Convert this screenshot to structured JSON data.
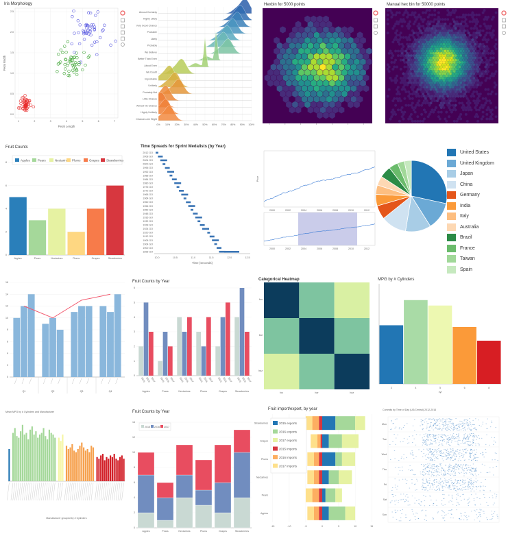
{
  "iris": {
    "title": "Iris Morphology",
    "xlabel": "Petal Length",
    "ylabel": "Petal Width",
    "xticks": [
      "1",
      "2",
      "3",
      "4",
      "5",
      "6",
      "7"
    ],
    "yticks": [
      "0.0",
      "0.5",
      "1.0",
      "1.5",
      "2.0",
      "2.5"
    ],
    "colors": [
      "#e82c2c",
      "#3fa535",
      "#5a5ae0"
    ]
  },
  "ridge": {
    "labels": [
      "Almost Certainly",
      "Highly Likely",
      "Very Good Chance",
      "Probable",
      "Likely",
      "Probably",
      "We Believe",
      "Better Than Even",
      "About Even",
      "We Doubt",
      "Improbable",
      "Unlikely",
      "Probably Not",
      "Little Chance",
      "Almost No Chance",
      "Highly Unlikely",
      "Chances Are Slight"
    ],
    "xticks": [
      "0%",
      "10%",
      "20%",
      "30%",
      "40%",
      "50%",
      "60%",
      "70%",
      "80%",
      "90%",
      "100%"
    ],
    "modes": [
      0.93,
      0.88,
      0.85,
      0.8,
      0.74,
      0.7,
      0.75,
      0.62,
      0.5,
      0.25,
      0.12,
      0.18,
      0.22,
      0.08,
      0.03,
      0.08,
      0.12
    ]
  },
  "hex": {
    "title": "Hexbin for 5000 points"
  },
  "hist2d": {
    "title": "Manual hex bin for 50000 points"
  },
  "fruit_counts": {
    "chart_data": {
      "type": "bar",
      "title": "Fruit Counts",
      "categories": [
        "Apples",
        "Pears",
        "Nectarines",
        "Plums",
        "Grapes",
        "Strawberries"
      ],
      "values": [
        5,
        3,
        4,
        2,
        4,
        6
      ],
      "colors": [
        "#2a7fba",
        "#a5d89a",
        "#e6f2a2",
        "#fed782",
        "#f77b4a",
        "#d7373f"
      ],
      "ylim": [
        0,
        9
      ],
      "yticks": [
        "0",
        "2",
        "4",
        "6",
        "8"
      ]
    }
  },
  "sprint": {
    "chart_data": {
      "type": "bar",
      "title": "Time Spreads for Sprint Medalists (by Year)",
      "xlabel": "Time (seconds)",
      "xticks": [
        "10.0",
        "10.5",
        "11.0",
        "11.5",
        "12.0",
        "12.5"
      ],
      "years": [
        "2012 GO",
        "2008 GO",
        "2004 GO",
        "2000 GO",
        "1996 GO",
        "1992 GO",
        "1988 GO",
        "1984 GO",
        "1980 GO",
        "1976 GO",
        "1972 GO",
        "1968 GO",
        "1964 GO",
        "1960 GO",
        "1956 GO",
        "1952 GO",
        "1948 GO",
        "1936 GO",
        "1932 GO",
        "1928 GO",
        "1924 GO",
        "1920 GO",
        "1912 GO",
        "1908 GO",
        "1904 GO",
        "1900 GO",
        "1896 GO"
      ]
    }
  },
  "stock": {
    "ylabel": "Price",
    "xticks": [
      "2000",
      "2002",
      "2004",
      "2006",
      "2008",
      "2010",
      "2012"
    ]
  },
  "pie": {
    "chart_data": {
      "type": "pie",
      "legend_position": "right",
      "labels": [
        "United States",
        "United Kingdom",
        "Japan",
        "China",
        "Germany",
        "India",
        "Italy",
        "Australia",
        "Brazil",
        "France",
        "Taiwan",
        "Spain"
      ],
      "values": [
        27,
        12,
        11,
        11,
        6,
        5,
        4,
        4,
        5,
        4,
        3,
        3
      ],
      "colors": [
        "#2276b4",
        "#6ba9d5",
        "#a8cde6",
        "#cfe2f1",
        "#e4561a",
        "#fb9a39",
        "#fdbe80",
        "#fdd8b3",
        "#2c8b46",
        "#6abb6b",
        "#a1d899",
        "#c6e9bf"
      ]
    }
  },
  "grouped": {
    "title": "",
    "chart_data": {
      "type": "bar",
      "groups": [
        "Q1",
        "Q2",
        "Q3",
        "Q4"
      ],
      "values": [
        [
          10,
          12,
          14
        ],
        [
          9,
          10,
          8
        ],
        [
          11,
          12,
          12
        ],
        [
          12,
          11,
          14
        ]
      ],
      "line": [
        12,
        10,
        13,
        14
      ],
      "color": "#8ab7dc",
      "line_color": "#f25a6f",
      "ylim": [
        0,
        16
      ],
      "yticks": [
        "0",
        "2",
        "4",
        "6",
        "8",
        "10",
        "12",
        "14",
        "16"
      ]
    }
  },
  "fruit_year": {
    "chart_data": {
      "type": "bar",
      "title": "Fruit Counts by Year",
      "categories": [
        "Apples",
        "Pears",
        "Nectarines",
        "Plums",
        "Grapes",
        "Strawberries"
      ],
      "series": [
        {
          "name": "2015",
          "values": [
            2,
            1,
            4,
            3,
            2,
            4
          ]
        },
        {
          "name": "2016",
          "values": [
            5,
            3,
            3,
            2,
            4,
            6
          ]
        },
        {
          "name": "2017",
          "values": [
            3,
            2,
            4,
            4,
            5,
            3
          ]
        }
      ],
      "colors": [
        "#c9d9d3",
        "#718dbf",
        "#e84d60"
      ],
      "ylim": [
        0,
        6
      ],
      "yticks": [
        "0",
        "1",
        "2",
        "3",
        "4",
        "5",
        "6"
      ]
    }
  },
  "heatmap": {
    "chart_data": {
      "type": "heatmap",
      "title": "Categorical Heatmap",
      "x": [
        "foo",
        "bar",
        "baz"
      ],
      "y": [
        "foo",
        "bar",
        "baz"
      ],
      "colors": [
        [
          "#0c3c5c",
          "#7ec4a0",
          "#d9f0a3"
        ],
        [
          "#7ec4a0",
          "#0c3c5c",
          "#7ec4a0"
        ],
        [
          "#d9f0a3",
          "#7ec4a0",
          "#0c3c5c"
        ]
      ],
      "grid": false
    }
  },
  "mpg": {
    "chart_data": {
      "type": "bar",
      "title": "MPG by # Cylinders",
      "xlabel": "cyl",
      "categories": [
        "3",
        "4",
        "5",
        "6",
        "8"
      ],
      "values": [
        20.5,
        29.3,
        27.4,
        19.9,
        15.1
      ],
      "colors": [
        "#2276b4",
        "#a9dba6",
        "#edf8b1",
        "#fb9a39",
        "#d71e23"
      ],
      "ylim": [
        0,
        35
      ]
    }
  },
  "mpg_mfr": {
    "chart_data": {
      "type": "bar",
      "title": "Mean MPG by # Cylinders and Manufacturer",
      "xlabel": "Manufacturer grouped by # Cylinders",
      "ylim": [
        0,
        40
      ],
      "groups": [
        {
          "cyl": "3",
          "color": "#2276b4",
          "count": 1,
          "values": [
            20
          ]
        },
        {
          "cyl": "4",
          "color": "#a5d89a",
          "count": 23,
          "values": [
            30,
            33,
            28,
            27,
            31,
            35,
            29,
            30,
            26,
            32,
            34,
            29,
            31,
            27,
            29,
            30,
            33,
            28,
            26,
            32,
            30,
            29,
            27
          ]
        },
        {
          "cyl": "5",
          "color": "#f6f6a5",
          "count": 3,
          "values": [
            27,
            25,
            29
          ]
        },
        {
          "cyl": "6",
          "color": "#f6a14e",
          "count": 15,
          "values": [
            22,
            20,
            21,
            23,
            19,
            18,
            20,
            22,
            24,
            21,
            19,
            20,
            18,
            22,
            21
          ]
        },
        {
          "cyl": "8",
          "color": "#d21f27",
          "count": 15,
          "values": [
            15,
            14,
            16,
            17,
            13,
            15,
            14,
            16,
            15,
            17,
            14,
            13,
            15,
            16,
            14
          ]
        }
      ]
    }
  },
  "fruit_stacked": {
    "chart_data": {
      "type": "bar",
      "title": "Fruit Counts by Year",
      "categories": [
        "Apples",
        "Pears",
        "Nectarines",
        "Plums",
        "Grapes",
        "Strawberries"
      ],
      "series": [
        {
          "name": "2015",
          "values": [
            2,
            1,
            4,
            3,
            2,
            4
          ]
        },
        {
          "name": "2016",
          "values": [
            5,
            3,
            3,
            2,
            4,
            6
          ]
        },
        {
          "name": "2017",
          "values": [
            3,
            2,
            4,
            4,
            5,
            3
          ]
        }
      ],
      "colors": [
        "#c9d9d3",
        "#718dbf",
        "#e84d60"
      ],
      "ylim": [
        0,
        14
      ],
      "yticks": [
        "0",
        "2",
        "4",
        "6",
        "8",
        "10",
        "12",
        "14"
      ]
    }
  },
  "import_export": {
    "chart_data": {
      "type": "bar",
      "title": "Fruit import/export, by year",
      "categories": [
        "Strawberries",
        "Grapes",
        "Plums",
        "Nectarines",
        "Pears",
        "Apples"
      ],
      "series": [
        {
          "name": "2015 exports",
          "values": [
            4,
            2,
            4,
            2,
            1,
            2
          ]
        },
        {
          "name": "2016 exports",
          "values": [
            6,
            4,
            2,
            3,
            3,
            5
          ]
        },
        {
          "name": "2017 exports",
          "values": [
            3,
            5,
            4,
            4,
            2,
            3
          ]
        },
        {
          "name": "2015 imports",
          "values": [
            -1,
            -0.5,
            -1,
            -1,
            -1,
            -1
          ]
        },
        {
          "name": "2016 imports",
          "values": [
            -2,
            -1,
            -1.5,
            -1.5,
            -2,
            -1.5
          ]
        },
        {
          "name": "2017 imports",
          "values": [
            -2,
            -2,
            -2,
            -2,
            -2,
            -2
          ]
        }
      ],
      "colors": [
        "#2276b4",
        "#a5d89a",
        "#e6f2a2",
        "#d7373f",
        "#fdae61",
        "#fee08b"
      ],
      "xlim": [
        -16,
        16
      ],
      "xticks": [
        "-15",
        "-10",
        "-5",
        "0",
        "5",
        "10",
        "15"
      ]
    }
  },
  "commits": {
    "title": "Commits by Time of Day (US/Central) 2012-2016",
    "days": [
      "Mon",
      "Tue",
      "Wed",
      "Thu",
      "Fri",
      "Sat",
      "Sun"
    ],
    "color": "#3d80c2"
  }
}
